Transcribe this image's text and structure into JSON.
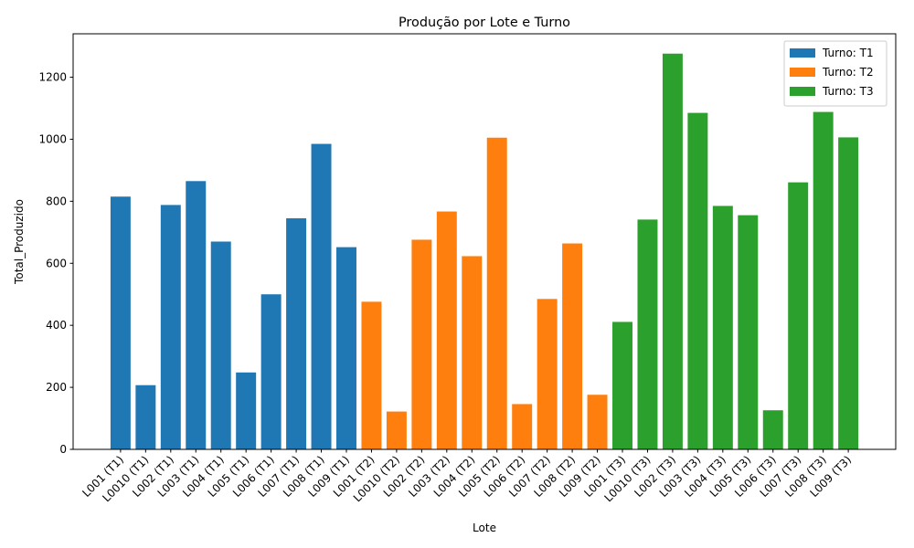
{
  "chart_data": {
    "type": "bar",
    "title": "Produção por Lote e Turno",
    "x_label": "Lote",
    "y_label": "Total_Produzido",
    "categories": [
      "L001 (T1)",
      "L0010 (T1)",
      "L002 (T1)",
      "L003 (T1)",
      "L004 (T1)",
      "L005 (T1)",
      "L006 (T1)",
      "L007 (T1)",
      "L008 (T1)",
      "L009 (T1)",
      "L001 (T2)",
      "L0010 (T2)",
      "L002 (T2)",
      "L003 (T2)",
      "L004 (T2)",
      "L005 (T2)",
      "L006 (T2)",
      "L007 (T2)",
      "L008 (T2)",
      "L009 (T2)",
      "L001 (T3)",
      "L0010 (T3)",
      "L002 (T3)",
      "L003 (T3)",
      "L004 (T3)",
      "L005 (T3)",
      "L006 (T3)",
      "L007 (T3)",
      "L008 (T3)",
      "L009 (T3)"
    ],
    "series": [
      {
        "name": "Turno: T1",
        "color": "#1f77b4",
        "values": [
          815,
          207,
          788,
          865,
          670,
          248,
          500,
          745,
          985,
          652,
          null,
          null,
          null,
          null,
          null,
          null,
          null,
          null,
          null,
          null,
          null,
          null,
          null,
          null,
          null,
          null,
          null,
          null,
          null,
          null
        ]
      },
      {
        "name": "Turno: T2",
        "color": "#ff7f0e",
        "values": [
          null,
          null,
          null,
          null,
          null,
          null,
          null,
          null,
          null,
          null,
          476,
          122,
          676,
          767,
          623,
          1005,
          146,
          485,
          664,
          176,
          null,
          null,
          null,
          null,
          null,
          null,
          null,
          null,
          null,
          null
        ]
      },
      {
        "name": "Turno: T3",
        "color": "#2ca02c",
        "values": [
          null,
          null,
          null,
          null,
          null,
          null,
          null,
          null,
          null,
          null,
          null,
          null,
          null,
          null,
          null,
          null,
          null,
          null,
          null,
          null,
          411,
          741,
          1276,
          1085,
          785,
          755,
          126,
          861,
          1088,
          1006
        ]
      }
    ],
    "ylim": [
      0,
      1340
    ],
    "yticks": [
      0,
      200,
      400,
      600,
      800,
      1000,
      1200
    ],
    "grid": false,
    "legend": "upper right"
  }
}
